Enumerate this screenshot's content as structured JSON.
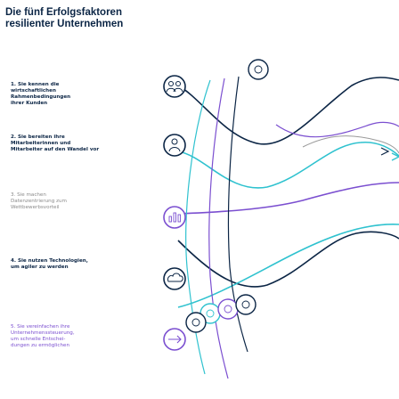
{
  "title_line1": "Die fünf Erfolgsfaktoren",
  "title_line2": "resilienter Unternehmen",
  "colors": {
    "navy": "#0b2545",
    "purple": "#7b4fd0",
    "cyan": "#2fc2cf",
    "gray": "#8a8a8a"
  },
  "factors": [
    {
      "lines": [
        "1. Sie kennen die",
        "wirtschaftlichen",
        "Rahmenbedingungen",
        "ihrer Kunden"
      ],
      "color": "#0b2545",
      "icon": "people-network-icon"
    },
    {
      "lines": [
        "2. Sie bereiten ihre",
        "Mitarbeiterinnen und",
        "Mitarbeiter auf den Wandel vor"
      ],
      "color": "#0b2545",
      "icon": "person-growth-icon"
    },
    {
      "lines": [
        "3. Sie machen",
        "Datenzentrierung zum",
        "Wettbewerbsvorteil"
      ],
      "color": "#8a8a8a",
      "icon": "bar-chart-icon"
    },
    {
      "lines": [
        "4. Sie nutzen Technologien,",
        "um agiler zu werden"
      ],
      "color": "#0b2545",
      "icon": "cloud-tech-icon"
    },
    {
      "lines": [
        "5. Sie vereinfachen ihre",
        "Unternehmenssteuerung,",
        "um schnelle Entschei-",
        "dungen zu ermöglichen"
      ],
      "color": "#7b4fd0",
      "icon": "process-arrows-icon"
    }
  ]
}
